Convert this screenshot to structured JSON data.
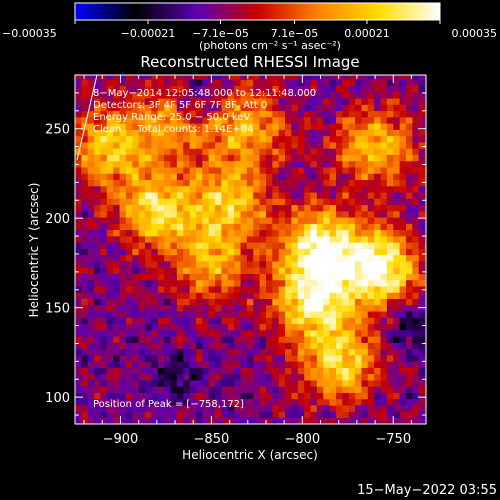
{
  "chart_data": {
    "type": "heatmap",
    "title": "Reconstructed RHESSI Image",
    "xlabel": "Heliocentric X (arcsec)",
    "ylabel": "Heliocentric Y (arcsec)",
    "xlim": [
      -925,
      -732
    ],
    "ylim": [
      85,
      280
    ],
    "x_ticks": [
      -900,
      -850,
      -800,
      -750
    ],
    "x_tick_labels": [
      "−900",
      "−850",
      "−800",
      "−750"
    ],
    "y_ticks": [
      100,
      150,
      200,
      250
    ],
    "y_tick_labels": [
      "100",
      "150",
      "200",
      "250"
    ],
    "colorbar": {
      "range": [
        -0.00035,
        0.00035
      ],
      "ticks": [
        -0.00035,
        -0.00021,
        -7.1e-05,
        7.1e-05,
        0.00021,
        0.00035
      ],
      "tick_labels": [
        "−0.00035",
        "−0.00021",
        "−7.1e−05",
        "7.1e−05",
        "0.00021",
        "0.00035"
      ],
      "unit_label": "(photons cm⁻² s⁻¹ asec⁻²)",
      "colors": [
        "#0000ff",
        "#000000",
        "#5a00b4",
        "#c80000",
        "#ff8200",
        "#ffdc00",
        "#ffffff"
      ]
    },
    "annotations": [
      "8−May−2014 12:05:48.000 to 12:11:48.000",
      "Detectors: 3F 4F 5F 6F 7F 8F, Att 0",
      "Energy Range: 25.0 − 50.0 keV",
      "Clean     Total counts: 1.14E+04"
    ],
    "peak": {
      "label": "Position of Peak = [−758,172]",
      "x": -758,
      "y": 172
    },
    "hot_regions": [
      {
        "x": -758,
        "y": 172,
        "level": 0.00035
      },
      {
        "x": -790,
        "y": 185,
        "level": 0.0003
      },
      {
        "x": -795,
        "y": 155,
        "level": 0.00028
      },
      {
        "x": -780,
        "y": 120,
        "level": 0.00024
      },
      {
        "x": -880,
        "y": 205,
        "level": 0.00025
      },
      {
        "x": -905,
        "y": 240,
        "level": 0.00022
      },
      {
        "x": -840,
        "y": 210,
        "level": 0.0002
      },
      {
        "x": -760,
        "y": 240,
        "level": 0.0002
      },
      {
        "x": -830,
        "y": 250,
        "level": 0.00018
      },
      {
        "x": -850,
        "y": 175,
        "level": 0.00016
      },
      {
        "x": -870,
        "y": 255,
        "level": 0.00016
      }
    ],
    "cold_regions": [
      {
        "x": -860,
        "y": 265,
        "level": -0.00021
      },
      {
        "x": -740,
        "y": 140,
        "level": -0.00018
      },
      {
        "x": -870,
        "y": 110,
        "level": -0.00014
      }
    ],
    "grid": false
  },
  "footer": {
    "timestamp": "15−May−2022 03:55"
  }
}
